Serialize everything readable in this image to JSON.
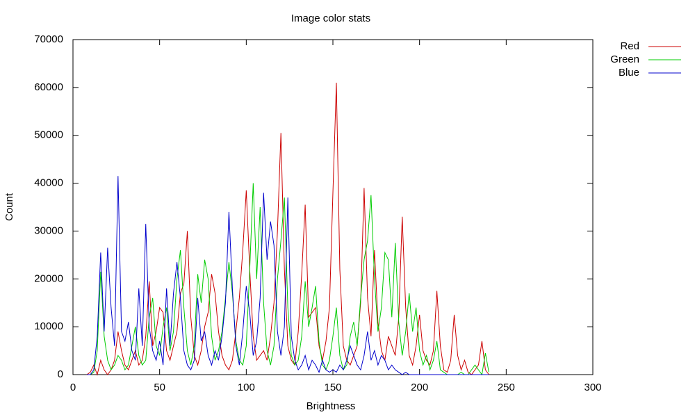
{
  "chart_data": {
    "type": "line",
    "title": "Image color stats",
    "x_label": "Brightness",
    "y_label": "Count",
    "x": [
      8,
      10,
      12,
      14,
      16,
      18,
      20,
      22,
      24,
      26,
      28,
      30,
      32,
      34,
      36,
      38,
      40,
      42,
      44,
      46,
      48,
      50,
      52,
      54,
      56,
      58,
      60,
      62,
      64,
      66,
      68,
      70,
      72,
      74,
      76,
      78,
      80,
      82,
      84,
      86,
      88,
      90,
      92,
      94,
      96,
      98,
      100,
      102,
      104,
      106,
      108,
      110,
      112,
      114,
      116,
      118,
      120,
      122,
      124,
      126,
      128,
      130,
      132,
      134,
      136,
      138,
      140,
      142,
      144,
      146,
      148,
      150,
      152,
      154,
      156,
      158,
      160,
      162,
      164,
      166,
      168,
      170,
      172,
      174,
      176,
      178,
      180,
      182,
      184,
      186,
      188,
      190,
      192,
      194,
      196,
      198,
      200,
      202,
      204,
      206,
      208,
      210,
      212,
      214,
      216,
      218,
      220,
      222,
      224,
      226,
      228,
      230,
      232,
      234,
      236,
      238,
      240
    ],
    "series": [
      {
        "name": "Red",
        "color": "#cc0000",
        "values": [
          0,
          500,
          2000,
          0,
          3000,
          1000,
          0,
          1000,
          3000,
          9000,
          5000,
          2000,
          1000,
          3000,
          5000,
          2000,
          3000,
          8000,
          19500,
          6000,
          9000,
          14000,
          13000,
          5000,
          3000,
          6000,
          9000,
          17000,
          19000,
          30000,
          12000,
          4000,
          2000,
          5000,
          10000,
          13000,
          21000,
          17000,
          9000,
          4000,
          2000,
          1000,
          3000,
          9000,
          16000,
          26000,
          38500,
          22000,
          8000,
          3000,
          4000,
          5000,
          3000,
          8000,
          15000,
          30000,
          50500,
          22000,
          6000,
          3000,
          2000,
          9000,
          21000,
          35500,
          12000,
          13000,
          14000,
          6000,
          3000,
          7000,
          14000,
          38000,
          61000,
          22000,
          6000,
          3000,
          2000,
          4000,
          6000,
          15000,
          39000,
          16000,
          8000,
          26000,
          11000,
          5000,
          3000,
          8000,
          6000,
          4000,
          12000,
          33000,
          14000,
          4000,
          2000,
          6000,
          12500,
          5000,
          3000,
          2000,
          5000,
          17500,
          6000,
          1000,
          500,
          3000,
          12500,
          4000,
          1000,
          3000,
          500,
          0,
          1000,
          2000,
          7000,
          1000,
          0
        ]
      },
      {
        "name": "Green",
        "color": "#00cc00",
        "values": [
          0,
          0,
          500,
          5000,
          21500,
          8000,
          3000,
          1000,
          2000,
          4000,
          3000,
          1000,
          2000,
          6000,
          10000,
          4000,
          2000,
          3000,
          12000,
          16000,
          6000,
          4000,
          10000,
          14000,
          5000,
          9000,
          20000,
          26000,
          14000,
          5000,
          2000,
          6000,
          21000,
          15000,
          24000,
          20000,
          8000,
          3000,
          5000,
          9000,
          16000,
          23500,
          17000,
          7000,
          3000,
          2000,
          6000,
          22000,
          40000,
          20000,
          35000,
          15000,
          5000,
          2000,
          6000,
          20000,
          28000,
          37000,
          14000,
          4000,
          2000,
          3000,
          8000,
          19500,
          10000,
          14000,
          18500,
          7000,
          2000,
          1000,
          3000,
          8000,
          14000,
          4000,
          1000,
          2000,
          8000,
          11000,
          6000,
          16000,
          24000,
          28000,
          37500,
          20000,
          9000,
          14000,
          25500,
          24000,
          12000,
          27500,
          11000,
          4000,
          9000,
          17000,
          9000,
          14000,
          5000,
          2000,
          4000,
          1000,
          3000,
          7000,
          1000,
          500,
          0,
          0,
          0,
          0,
          500,
          0,
          0,
          1000,
          2000,
          1000,
          0,
          4500,
          500
        ]
      },
      {
        "name": "Blue",
        "color": "#0000cc",
        "values": [
          0,
          0,
          1000,
          8000,
          25500,
          9000,
          26500,
          14000,
          6000,
          41500,
          9000,
          7000,
          11000,
          5000,
          3000,
          18000,
          6000,
          31500,
          10000,
          5000,
          3000,
          7000,
          2000,
          18000,
          6000,
          17000,
          23500,
          16000,
          5000,
          2000,
          1000,
          3000,
          16000,
          7000,
          9000,
          4000,
          2000,
          5000,
          3000,
          8000,
          15000,
          34000,
          18000,
          6000,
          2000,
          9000,
          18500,
          13000,
          4000,
          7000,
          16000,
          38000,
          24000,
          32000,
          27000,
          9000,
          4000,
          10000,
          37000,
          8000,
          3000,
          1000,
          2000,
          4000,
          1000,
          3000,
          2000,
          500,
          3000,
          1000,
          500,
          1000,
          500,
          2000,
          1000,
          3000,
          6000,
          4000,
          2000,
          1000,
          4000,
          9000,
          3000,
          5000,
          2000,
          4000,
          3000,
          1000,
          2000,
          1000,
          500,
          0,
          500,
          0,
          0,
          0,
          0,
          0,
          0,
          0,
          0,
          0,
          0,
          0,
          0,
          0,
          0,
          0,
          0,
          0,
          0,
          0,
          0,
          0,
          0,
          0,
          0
        ]
      }
    ],
    "xlim": [
      0,
      300
    ],
    "xticks": [
      0,
      50,
      100,
      150,
      200,
      250,
      300
    ],
    "ylim": [
      0,
      70000
    ],
    "yticks": [
      0,
      10000,
      20000,
      30000,
      40000,
      50000,
      60000,
      70000
    ],
    "grid": false,
    "legend": "right-top"
  }
}
